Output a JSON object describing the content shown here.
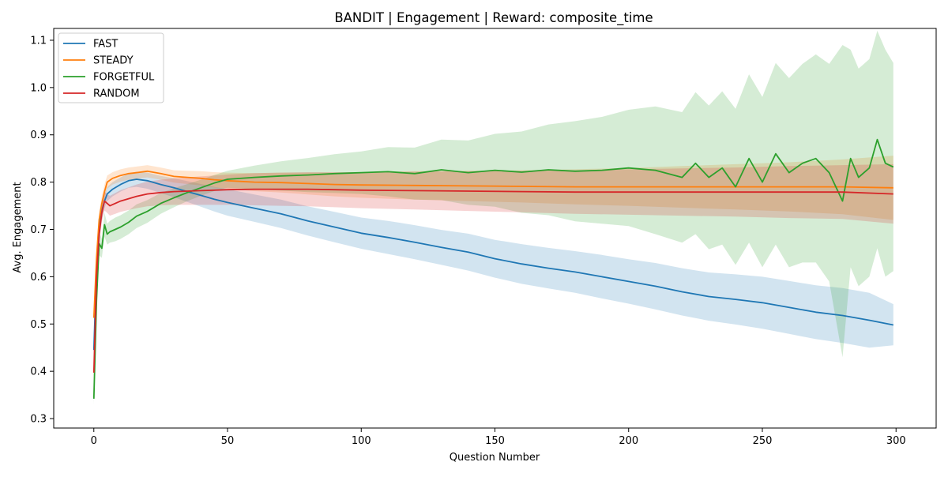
{
  "chart_data": {
    "type": "line",
    "title": "BANDIT | Engagement | Reward: composite_time",
    "xlabel": "Question Number",
    "ylabel": "Avg. Engagement",
    "xlim": [
      -15,
      315
    ],
    "ylim": [
      0.28,
      1.125
    ],
    "x_ticks": [
      0,
      50,
      100,
      150,
      200,
      250,
      300
    ],
    "y_ticks": [
      0.3,
      0.4,
      0.5,
      0.6,
      0.7,
      0.8,
      0.9,
      1.0,
      1.1
    ],
    "grid": false,
    "legend_position": "top-left",
    "band": "shaded uncertainty band around each line",
    "series": [
      {
        "name": "FAST",
        "color": "#1f77b4",
        "x": [
          0,
          1,
          2,
          3,
          4,
          5,
          7,
          10,
          13,
          16,
          20,
          25,
          30,
          35,
          40,
          45,
          50,
          60,
          70,
          80,
          90,
          100,
          110,
          120,
          130,
          140,
          150,
          160,
          170,
          180,
          190,
          200,
          210,
          220,
          230,
          240,
          250,
          260,
          270,
          280,
          290,
          299
        ],
        "y": [
          0.445,
          0.62,
          0.7,
          0.74,
          0.76,
          0.775,
          0.785,
          0.795,
          0.803,
          0.806,
          0.803,
          0.795,
          0.788,
          0.78,
          0.772,
          0.764,
          0.757,
          0.745,
          0.733,
          0.718,
          0.705,
          0.692,
          0.683,
          0.673,
          0.662,
          0.652,
          0.638,
          0.627,
          0.618,
          0.61,
          0.6,
          0.59,
          0.58,
          0.568,
          0.558,
          0.552,
          0.545,
          0.535,
          0.525,
          0.518,
          0.508,
          0.498
        ],
        "lower": [
          0.415,
          0.59,
          0.675,
          0.72,
          0.745,
          0.76,
          0.77,
          0.78,
          0.788,
          0.79,
          0.786,
          0.777,
          0.768,
          0.758,
          0.748,
          0.738,
          0.729,
          0.716,
          0.703,
          0.687,
          0.673,
          0.659,
          0.648,
          0.637,
          0.625,
          0.613,
          0.598,
          0.585,
          0.575,
          0.566,
          0.554,
          0.543,
          0.531,
          0.518,
          0.507,
          0.499,
          0.49,
          0.479,
          0.468,
          0.46,
          0.45,
          0.455
        ],
        "upper": [
          0.475,
          0.65,
          0.725,
          0.76,
          0.775,
          0.79,
          0.8,
          0.81,
          0.818,
          0.822,
          0.82,
          0.813,
          0.808,
          0.802,
          0.796,
          0.79,
          0.785,
          0.774,
          0.763,
          0.749,
          0.737,
          0.725,
          0.718,
          0.709,
          0.699,
          0.691,
          0.678,
          0.669,
          0.661,
          0.654,
          0.646,
          0.637,
          0.629,
          0.618,
          0.609,
          0.605,
          0.6,
          0.591,
          0.582,
          0.576,
          0.566,
          0.542
        ]
      },
      {
        "name": "STEADY",
        "color": "#ff7f0e",
        "x": [
          0,
          1,
          2,
          3,
          4,
          5,
          7,
          10,
          13,
          16,
          20,
          25,
          30,
          35,
          40,
          45,
          50,
          60,
          70,
          80,
          90,
          100,
          120,
          140,
          160,
          180,
          200,
          220,
          240,
          260,
          280,
          299
        ],
        "y": [
          0.513,
          0.64,
          0.72,
          0.755,
          0.78,
          0.8,
          0.808,
          0.814,
          0.818,
          0.82,
          0.823,
          0.818,
          0.812,
          0.81,
          0.808,
          0.805,
          0.803,
          0.8,
          0.799,
          0.797,
          0.795,
          0.794,
          0.793,
          0.792,
          0.791,
          0.79,
          0.79,
          0.79,
          0.79,
          0.79,
          0.79,
          0.788
        ],
        "lower": [
          0.49,
          0.62,
          0.7,
          0.74,
          0.765,
          0.786,
          0.795,
          0.801,
          0.805,
          0.807,
          0.81,
          0.805,
          0.799,
          0.796,
          0.793,
          0.789,
          0.786,
          0.781,
          0.778,
          0.774,
          0.77,
          0.767,
          0.763,
          0.76,
          0.757,
          0.753,
          0.75,
          0.746,
          0.742,
          0.738,
          0.732,
          0.72
        ],
        "upper": [
          0.536,
          0.66,
          0.74,
          0.77,
          0.795,
          0.814,
          0.821,
          0.827,
          0.831,
          0.833,
          0.836,
          0.831,
          0.825,
          0.824,
          0.823,
          0.821,
          0.82,
          0.819,
          0.82,
          0.82,
          0.82,
          0.821,
          0.823,
          0.824,
          0.825,
          0.827,
          0.83,
          0.834,
          0.838,
          0.842,
          0.848,
          0.856
        ]
      },
      {
        "name": "FORGETFUL",
        "color": "#2ca02c",
        "x": [
          0,
          1,
          2,
          3,
          4,
          5,
          6,
          8,
          10,
          13,
          16,
          20,
          25,
          30,
          35,
          40,
          45,
          50,
          60,
          70,
          80,
          90,
          100,
          110,
          120,
          130,
          140,
          150,
          160,
          170,
          180,
          190,
          200,
          210,
          220,
          225,
          230,
          235,
          240,
          245,
          250,
          255,
          260,
          265,
          270,
          275,
          280,
          283,
          286,
          290,
          293,
          296,
          299
        ],
        "y": [
          0.342,
          0.55,
          0.67,
          0.66,
          0.71,
          0.69,
          0.695,
          0.7,
          0.705,
          0.715,
          0.728,
          0.738,
          0.755,
          0.767,
          0.778,
          0.788,
          0.798,
          0.806,
          0.81,
          0.813,
          0.815,
          0.818,
          0.82,
          0.822,
          0.818,
          0.826,
          0.82,
          0.825,
          0.821,
          0.826,
          0.823,
          0.825,
          0.83,
          0.825,
          0.81,
          0.84,
          0.81,
          0.83,
          0.79,
          0.85,
          0.8,
          0.86,
          0.82,
          0.84,
          0.85,
          0.82,
          0.76,
          0.85,
          0.81,
          0.83,
          0.89,
          0.84,
          0.832
        ],
        "lower": [
          0.33,
          0.53,
          0.645,
          0.64,
          0.685,
          0.668,
          0.672,
          0.675,
          0.68,
          0.69,
          0.703,
          0.714,
          0.733,
          0.747,
          0.76,
          0.771,
          0.781,
          0.788,
          0.785,
          0.782,
          0.779,
          0.777,
          0.775,
          0.77,
          0.763,
          0.762,
          0.752,
          0.748,
          0.735,
          0.73,
          0.717,
          0.712,
          0.707,
          0.69,
          0.672,
          0.69,
          0.658,
          0.668,
          0.625,
          0.672,
          0.62,
          0.668,
          0.62,
          0.63,
          0.63,
          0.59,
          0.43,
          0.62,
          0.58,
          0.6,
          0.66,
          0.6,
          0.612
        ],
        "upper": [
          0.354,
          0.57,
          0.695,
          0.68,
          0.735,
          0.712,
          0.718,
          0.725,
          0.73,
          0.74,
          0.753,
          0.762,
          0.777,
          0.787,
          0.796,
          0.805,
          0.815,
          0.824,
          0.835,
          0.844,
          0.851,
          0.859,
          0.865,
          0.874,
          0.873,
          0.89,
          0.888,
          0.902,
          0.907,
          0.922,
          0.929,
          0.938,
          0.953,
          0.96,
          0.948,
          0.99,
          0.962,
          0.992,
          0.955,
          1.028,
          0.98,
          1.052,
          1.02,
          1.05,
          1.07,
          1.05,
          1.09,
          1.08,
          1.04,
          1.06,
          1.12,
          1.08,
          1.052
        ]
      },
      {
        "name": "RANDOM",
        "color": "#d62728",
        "x": [
          0,
          1,
          2,
          3,
          4,
          5,
          6,
          8,
          10,
          13,
          16,
          20,
          25,
          30,
          35,
          40,
          45,
          50,
          60,
          70,
          80,
          90,
          100,
          120,
          140,
          160,
          180,
          200,
          220,
          240,
          260,
          280,
          299
        ],
        "y": [
          0.397,
          0.6,
          0.69,
          0.735,
          0.76,
          0.755,
          0.75,
          0.755,
          0.76,
          0.765,
          0.77,
          0.775,
          0.778,
          0.78,
          0.781,
          0.782,
          0.783,
          0.784,
          0.785,
          0.785,
          0.785,
          0.784,
          0.783,
          0.782,
          0.781,
          0.78,
          0.779,
          0.779,
          0.779,
          0.779,
          0.779,
          0.779,
          0.775
        ],
        "lower": [
          0.38,
          0.58,
          0.67,
          0.715,
          0.74,
          0.735,
          0.729,
          0.733,
          0.737,
          0.741,
          0.745,
          0.749,
          0.751,
          0.752,
          0.752,
          0.752,
          0.752,
          0.752,
          0.751,
          0.75,
          0.749,
          0.747,
          0.745,
          0.742,
          0.739,
          0.736,
          0.733,
          0.731,
          0.729,
          0.727,
          0.724,
          0.722,
          0.712
        ],
        "upper": [
          0.414,
          0.62,
          0.71,
          0.755,
          0.78,
          0.775,
          0.771,
          0.777,
          0.783,
          0.789,
          0.795,
          0.801,
          0.805,
          0.808,
          0.81,
          0.812,
          0.814,
          0.816,
          0.819,
          0.82,
          0.821,
          0.821,
          0.821,
          0.822,
          0.823,
          0.824,
          0.825,
          0.827,
          0.829,
          0.831,
          0.834,
          0.836,
          0.838
        ]
      }
    ]
  }
}
